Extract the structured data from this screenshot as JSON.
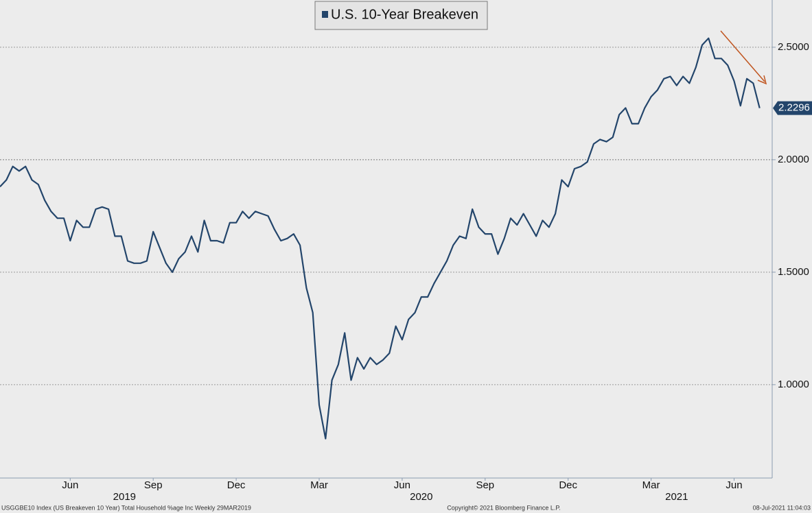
{
  "chart_data": {
    "type": "line",
    "legend": "top",
    "grid": true,
    "series": [
      {
        "name": "U.S. 10-Year Breakeven",
        "color": "#23456b",
        "values": [
          1.88,
          1.91,
          1.97,
          1.95,
          1.97,
          1.91,
          1.89,
          1.82,
          1.77,
          1.74,
          1.74,
          1.64,
          1.73,
          1.7,
          1.7,
          1.78,
          1.79,
          1.78,
          1.66,
          1.66,
          1.55,
          1.54,
          1.54,
          1.55,
          1.68,
          1.61,
          1.54,
          1.5,
          1.56,
          1.59,
          1.66,
          1.59,
          1.73,
          1.64,
          1.64,
          1.63,
          1.72,
          1.72,
          1.77,
          1.74,
          1.77,
          1.76,
          1.75,
          1.69,
          1.64,
          1.65,
          1.67,
          1.62,
          1.43,
          1.32,
          0.91,
          0.76,
          1.02,
          1.09,
          1.23,
          1.02,
          1.12,
          1.07,
          1.12,
          1.09,
          1.11,
          1.14,
          1.26,
          1.2,
          1.29,
          1.32,
          1.39,
          1.39,
          1.45,
          1.5,
          1.55,
          1.62,
          1.66,
          1.65,
          1.78,
          1.7,
          1.67,
          1.67,
          1.58,
          1.65,
          1.74,
          1.71,
          1.76,
          1.71,
          1.66,
          1.73,
          1.7,
          1.76,
          1.91,
          1.88,
          1.96,
          1.97,
          1.99,
          2.07,
          2.09,
          2.08,
          2.1,
          2.2,
          2.23,
          2.16,
          2.16,
          2.23,
          2.28,
          2.31,
          2.36,
          2.37,
          2.33,
          2.37,
          2.34,
          2.41,
          2.51,
          2.54,
          2.45,
          2.45,
          2.42,
          2.35,
          2.24,
          2.36,
          2.34,
          2.2296
        ]
      }
    ],
    "categories": [
      null,
      null,
      null,
      null,
      null,
      null,
      null,
      null,
      null,
      null,
      null,
      "Jun",
      null,
      null,
      null,
      null,
      null,
      null,
      null,
      null,
      null,
      null,
      null,
      null,
      "Sep",
      null,
      null,
      null,
      null,
      null,
      null,
      null,
      null,
      null,
      null,
      null,
      null,
      "Dec",
      null,
      null,
      null,
      null,
      null,
      null,
      null,
      null,
      null,
      null,
      null,
      null,
      "Mar",
      null,
      null,
      null,
      null,
      null,
      null,
      null,
      null,
      null,
      null,
      null,
      null,
      "Jun",
      null,
      null,
      null,
      null,
      null,
      null,
      null,
      null,
      null,
      null,
      null,
      null,
      "Sep",
      null,
      null,
      null,
      null,
      null,
      null,
      null,
      null,
      null,
      null,
      null,
      null,
      "Dec",
      null,
      null,
      null,
      null,
      null,
      null,
      null,
      null,
      null,
      null,
      null,
      null,
      "Mar",
      null,
      null,
      null,
      null,
      null,
      null,
      null,
      null,
      null,
      null,
      null,
      null,
      "Jun",
      null,
      null,
      null,
      null
    ],
    "years": [
      {
        "label": "2019",
        "count": 40
      },
      {
        "label": "2020",
        "count": 53
      },
      {
        "label": "2021",
        "count": 27
      }
    ],
    "ylim": [
      0.585,
      2.71
    ],
    "yticks": [
      {
        "value": 1.0,
        "label": "1.0000"
      },
      {
        "value": 1.5,
        "label": "1.5000"
      },
      {
        "value": 2.0,
        "label": "2.0000"
      },
      {
        "value": 2.5,
        "label": "2.5000"
      }
    ],
    "footer_left": "USGGBE10 Index (US Breakeven 10 Year) Total Household %age Inc  Weekly 29MAR2019",
    "footer_center": "Copyright© 2021 Bloomberg Finance L.P.",
    "footer_right": "08-Jul-2021 11:04:03"
  }
}
